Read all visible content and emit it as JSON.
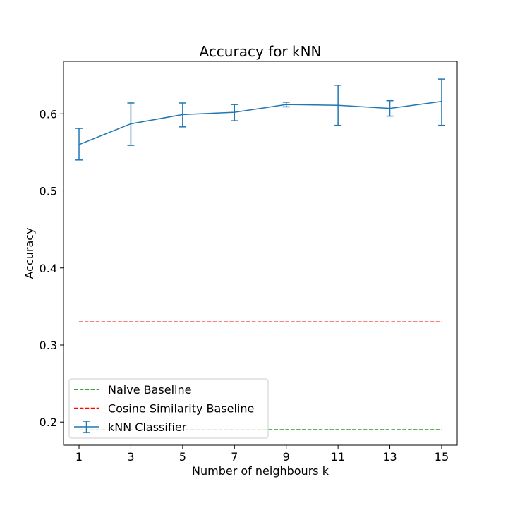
{
  "chart_data": {
    "type": "line",
    "title": "Accuracy for kNN",
    "xlabel": "Number of neighbours k",
    "ylabel": "Accuracy",
    "xlim": [
      0.4,
      15.6
    ],
    "ylim": [
      0.17,
      0.668
    ],
    "xticks": [
      1,
      3,
      5,
      7,
      9,
      11,
      13,
      15
    ],
    "yticks": [
      0.2,
      0.3,
      0.4,
      0.5,
      0.6
    ],
    "ytick_labels": [
      "0.2",
      "0.3",
      "0.4",
      "0.5",
      "0.6"
    ],
    "grid": false,
    "legend": {
      "placement": "bottom-left",
      "entries": [
        "Naive Baseline",
        "Cosine Similarity Baseline",
        "kNN Classifier"
      ]
    },
    "series": [
      {
        "name": "Naive Baseline",
        "style": "dashed",
        "color": "#008000",
        "x": [
          1,
          15
        ],
        "y": [
          0.19,
          0.19
        ]
      },
      {
        "name": "Cosine Similarity Baseline",
        "style": "dashed",
        "color": "#ff0000",
        "x": [
          1,
          15
        ],
        "y": [
          0.33,
          0.33
        ]
      },
      {
        "name": "kNN Classifier",
        "style": "solid-errorbar",
        "color": "#1f77b4",
        "x": [
          1,
          3,
          5,
          7,
          9,
          11,
          13,
          15
        ],
        "y": [
          0.56,
          0.587,
          0.599,
          0.602,
          0.612,
          0.611,
          0.607,
          0.616
        ],
        "err_low": [
          0.54,
          0.559,
          0.583,
          0.591,
          0.609,
          0.585,
          0.597,
          0.585
        ],
        "err_high": [
          0.581,
          0.614,
          0.614,
          0.612,
          0.615,
          0.637,
          0.617,
          0.645
        ]
      }
    ]
  }
}
